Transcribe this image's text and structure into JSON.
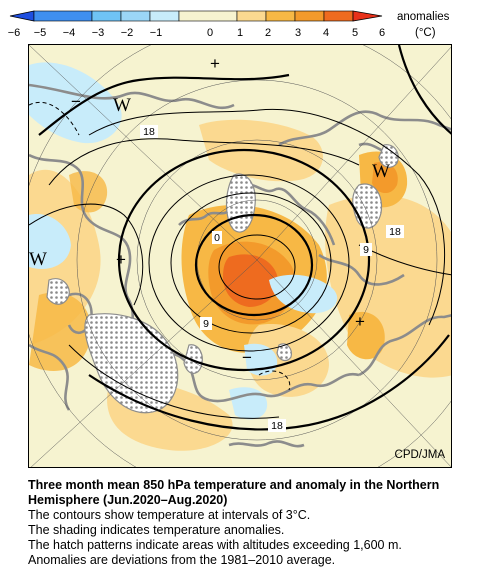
{
  "legend": {
    "label": "anomalies",
    "unit": "(°C)",
    "ticks": [
      "−6",
      "−5",
      "−4",
      "−3",
      "−2",
      "−1",
      "0",
      "1",
      "2",
      "3",
      "4",
      "5",
      "6"
    ],
    "colors": {
      "neg_strong": "#1f4fe0",
      "neg_mid": "#3f8ff0",
      "neg_light": "#6fc3f5",
      "neg_pale": "#c8ecfa",
      "neutral": "#f6f3d0",
      "pos_pale": "#fbd990",
      "pos_light": "#f7b845",
      "pos_mid": "#f39a2b",
      "pos_strong": "#ee6b1f",
      "pos_max": "#e8311a"
    }
  },
  "map": {
    "credit": "CPD/JMA",
    "contour_labels": [
      "18",
      "0",
      "9",
      "18",
      "9",
      "18"
    ],
    "pressure_labels": [
      "W",
      "W",
      "W"
    ],
    "sign_marks": [
      "+",
      "+",
      "+",
      "−",
      "−"
    ]
  },
  "caption": {
    "title": "Three month mean 850 hPa temperature and anomaly in the Northern Hemisphere (Jun.2020–Aug.2020)",
    "lines": [
      "The contours show temperature at intervals of 3°C.",
      "The shading indicates temperature anomalies.",
      "The hatch patterns indicate areas with altitudes exceeding 1,600 m.",
      "Anomalies are deviations from the 1981–2010 average."
    ]
  }
}
